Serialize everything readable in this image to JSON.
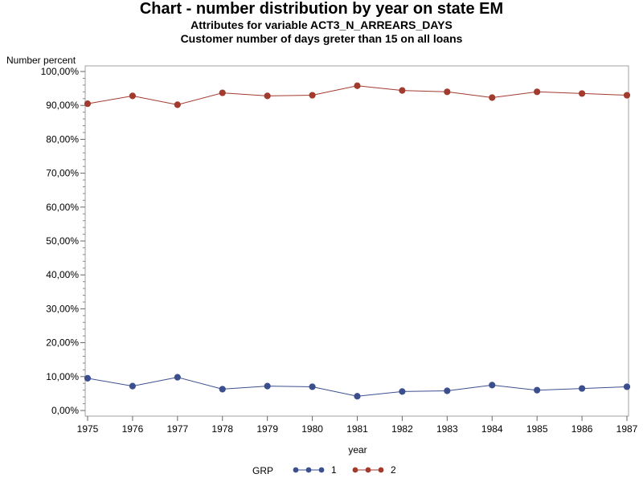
{
  "titles": {
    "main": "Chart - number distribution by year on state EM",
    "sub1": "Attributes for variable ACT3_N_ARREARS_DAYS",
    "sub2": "Customer number of days greter than 15 on all loans"
  },
  "chart_data": {
    "type": "line",
    "ylabel": "Number percent",
    "xlabel": "year",
    "x": [
      1975,
      1976,
      1977,
      1978,
      1979,
      1980,
      1981,
      1982,
      1983,
      1984,
      1985,
      1986,
      1987
    ],
    "yticks": [
      "0,00%",
      "10,00%",
      "20,00%",
      "30,00%",
      "40,00%",
      "50,00%",
      "60,00%",
      "70,00%",
      "80,00%",
      "90,00%",
      "100,00%"
    ],
    "ylim": [
      0,
      100
    ],
    "grid": false,
    "legend": {
      "title": "GRP",
      "position": "bottom"
    },
    "series": [
      {
        "name": "1",
        "color": "#3b4f8f",
        "values": [
          9.5,
          7.2,
          9.8,
          6.3,
          7.2,
          7.0,
          4.2,
          5.6,
          5.8,
          7.5,
          6.0,
          6.5,
          7.0
        ]
      },
      {
        "name": "2",
        "color": "#a23a2e",
        "values": [
          90.5,
          92.8,
          90.2,
          93.7,
          92.8,
          93.0,
          95.8,
          94.4,
          94.0,
          92.3,
          94.0,
          93.5,
          93.0
        ]
      }
    ]
  }
}
